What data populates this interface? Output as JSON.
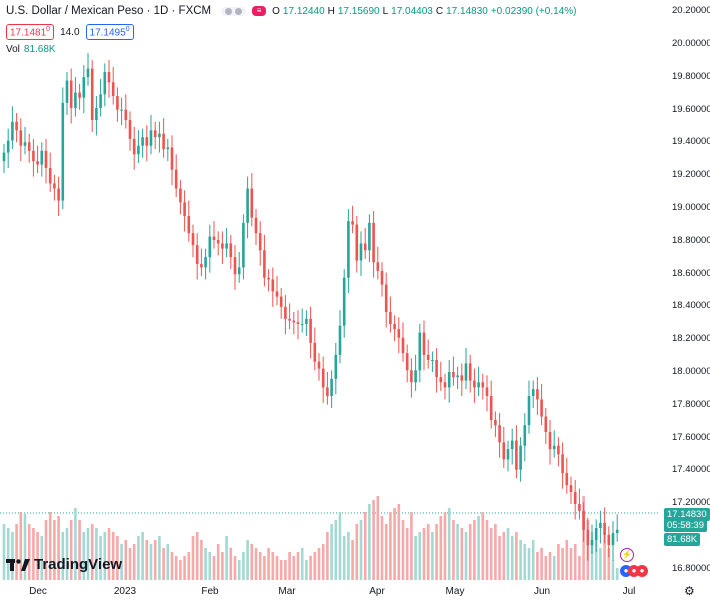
{
  "header": {
    "title": "U.S. Dollar / Mexican Peso · 1D · FXCM",
    "open_label": "O",
    "open": "17.12440",
    "high_label": "H",
    "high": "17.15690",
    "low_label": "L",
    "low": "17.04403",
    "close_label": "C",
    "close": "17.14830",
    "change": "+0.02390 (+0.14%)",
    "sell_price": "17.1481",
    "sell_sup": "0",
    "spread": "14.0",
    "buy_price": "17.1495",
    "buy_sup": "0",
    "vol_label": "Vol",
    "vol_value": "81.68K"
  },
  "axis": {
    "y_ticks": [
      "20.20000",
      "20.00000",
      "19.80000",
      "19.60000",
      "19.40000",
      "19.20000",
      "19.00000",
      "18.80000",
      "18.60000",
      "18.40000",
      "18.20000",
      "18.00000",
      "17.80000",
      "17.60000",
      "17.40000",
      "17.20000",
      "16.80000"
    ],
    "x_ticks": [
      "Dec",
      "2023",
      "Feb",
      "Mar",
      "Apr",
      "May",
      "Jun",
      "Jul"
    ]
  },
  "tags": {
    "last_price": "17.14830",
    "countdown": "05:58:39",
    "volume": "81.68K"
  },
  "branding": {
    "logo_text": "TradingView"
  },
  "colors": {
    "up": "#26a69a",
    "down": "#ef5350",
    "vol_up": "#a3d9d2",
    "vol_down": "#f5a9a9",
    "accent": "#2962ff"
  },
  "chart_data": {
    "type": "candlestick",
    "title": "U.S. Dollar / Mexican Peso · 1D · FXCM",
    "ylim": [
      16.74,
      20.24
    ],
    "xlabel": "",
    "ylabel": "",
    "grid": false,
    "closes": [
      19.35,
      19.42,
      19.53,
      19.48,
      19.39,
      19.41,
      19.36,
      19.3,
      19.28,
      19.36,
      19.26,
      19.17,
      19.14,
      19.07,
      19.64,
      19.77,
      19.61,
      19.7,
      19.67,
      19.79,
      19.84,
      19.54,
      19.61,
      19.69,
      19.82,
      19.76,
      19.68,
      19.6,
      19.6,
      19.54,
      19.43,
      19.34,
      19.39,
      19.44,
      19.39,
      19.48,
      19.44,
      19.46,
      19.37,
      19.38,
      19.25,
      19.14,
      19.06,
      18.98,
      18.88,
      18.81,
      18.7,
      18.68,
      18.74,
      18.86,
      18.84,
      18.82,
      18.79,
      18.82,
      18.74,
      18.64,
      18.68,
      18.94,
      19.14,
      18.97,
      18.88,
      18.78,
      18.62,
      18.61,
      18.54,
      18.51,
      18.45,
      18.38,
      18.37,
      18.36,
      18.35,
      18.35,
      18.38,
      18.24,
      18.13,
      18.09,
      17.98,
      17.93,
      18.03,
      18.17,
      18.34,
      18.62,
      18.95,
      18.93,
      18.72,
      18.82,
      18.78,
      18.94,
      18.71,
      18.66,
      18.58,
      18.42,
      18.35,
      18.32,
      18.27,
      18.18,
      18.08,
      18.01,
      18.08,
      18.3,
      18.17,
      18.14,
      18.14,
      18.04,
      18.01,
      17.98,
      18.07,
      18.04,
      18.05,
      18.02,
      18.12,
      18.02,
      17.98,
      18.01,
      17.98,
      17.93,
      17.79,
      17.76,
      17.66,
      17.56,
      17.62,
      17.67,
      17.5,
      17.64,
      17.76,
      17.93,
      17.97,
      17.91,
      17.81,
      17.72,
      17.62,
      17.64,
      17.59,
      17.48,
      17.41,
      17.37,
      17.3,
      17.26,
      17.15,
      17.06,
      17.09,
      17.16,
      17.19,
      17.12,
      17.06,
      17.13,
      17.15
    ],
    "volumes": [
      28,
      26,
      24,
      28,
      34,
      33,
      28,
      26,
      24,
      22,
      30,
      34,
      30,
      32,
      24,
      26,
      30,
      36,
      30,
      24,
      26,
      28,
      26,
      22,
      24,
      26,
      24,
      22,
      18,
      20,
      16,
      18,
      22,
      24,
      20,
      18,
      20,
      22,
      16,
      18,
      14,
      12,
      10,
      12,
      14,
      22,
      24,
      20,
      16,
      14,
      12,
      18,
      14,
      22,
      16,
      12,
      10,
      14,
      20,
      18,
      16,
      14,
      12,
      16,
      14,
      12,
      10,
      10,
      14,
      12,
      14,
      16,
      10,
      12,
      14,
      16,
      18,
      24,
      28,
      30,
      34,
      22,
      24,
      20,
      28,
      30,
      34,
      38,
      40,
      42,
      32,
      28,
      34,
      36,
      38,
      30,
      26,
      34,
      22,
      24,
      26,
      28,
      24,
      28,
      32,
      34,
      36,
      30,
      28,
      26,
      24,
      28,
      30,
      32,
      34,
      30,
      26,
      28,
      22,
      24,
      26,
      22,
      24,
      20,
      18,
      16,
      20,
      14,
      16,
      12,
      14,
      12,
      18,
      16,
      20,
      16,
      18,
      12,
      42,
      30,
      24,
      20,
      16,
      24,
      16,
      10,
      6
    ],
    "x_tick_labels": [
      "Dec",
      "2023",
      "Feb",
      "Mar",
      "Apr",
      "May",
      "Jun",
      "Jul"
    ],
    "last": 17.1483
  }
}
